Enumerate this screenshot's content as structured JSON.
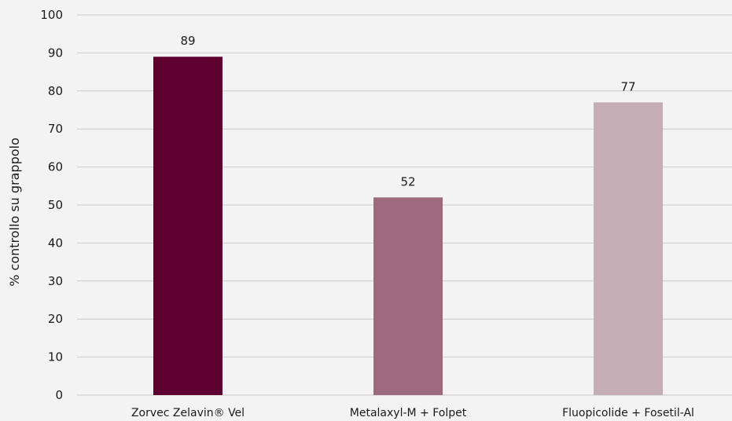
{
  "chart_data": {
    "type": "bar",
    "categories": [
      "Zorvec Zelavin® Vel",
      "Metalaxyl-M + Folpet",
      "Fluopicolide + Fosetil-Al"
    ],
    "values": [
      89,
      52,
      77
    ],
    "colors": [
      "#5e0030",
      "#9c6a7c",
      "#c5adb6"
    ],
    "xlabel": "",
    "ylabel": "% controllo su grappolo",
    "ylim": [
      0,
      100
    ],
    "yticks": [
      0,
      10,
      20,
      30,
      40,
      50,
      60,
      70,
      80,
      90,
      100
    ],
    "grid": true,
    "data_labels": true
  }
}
